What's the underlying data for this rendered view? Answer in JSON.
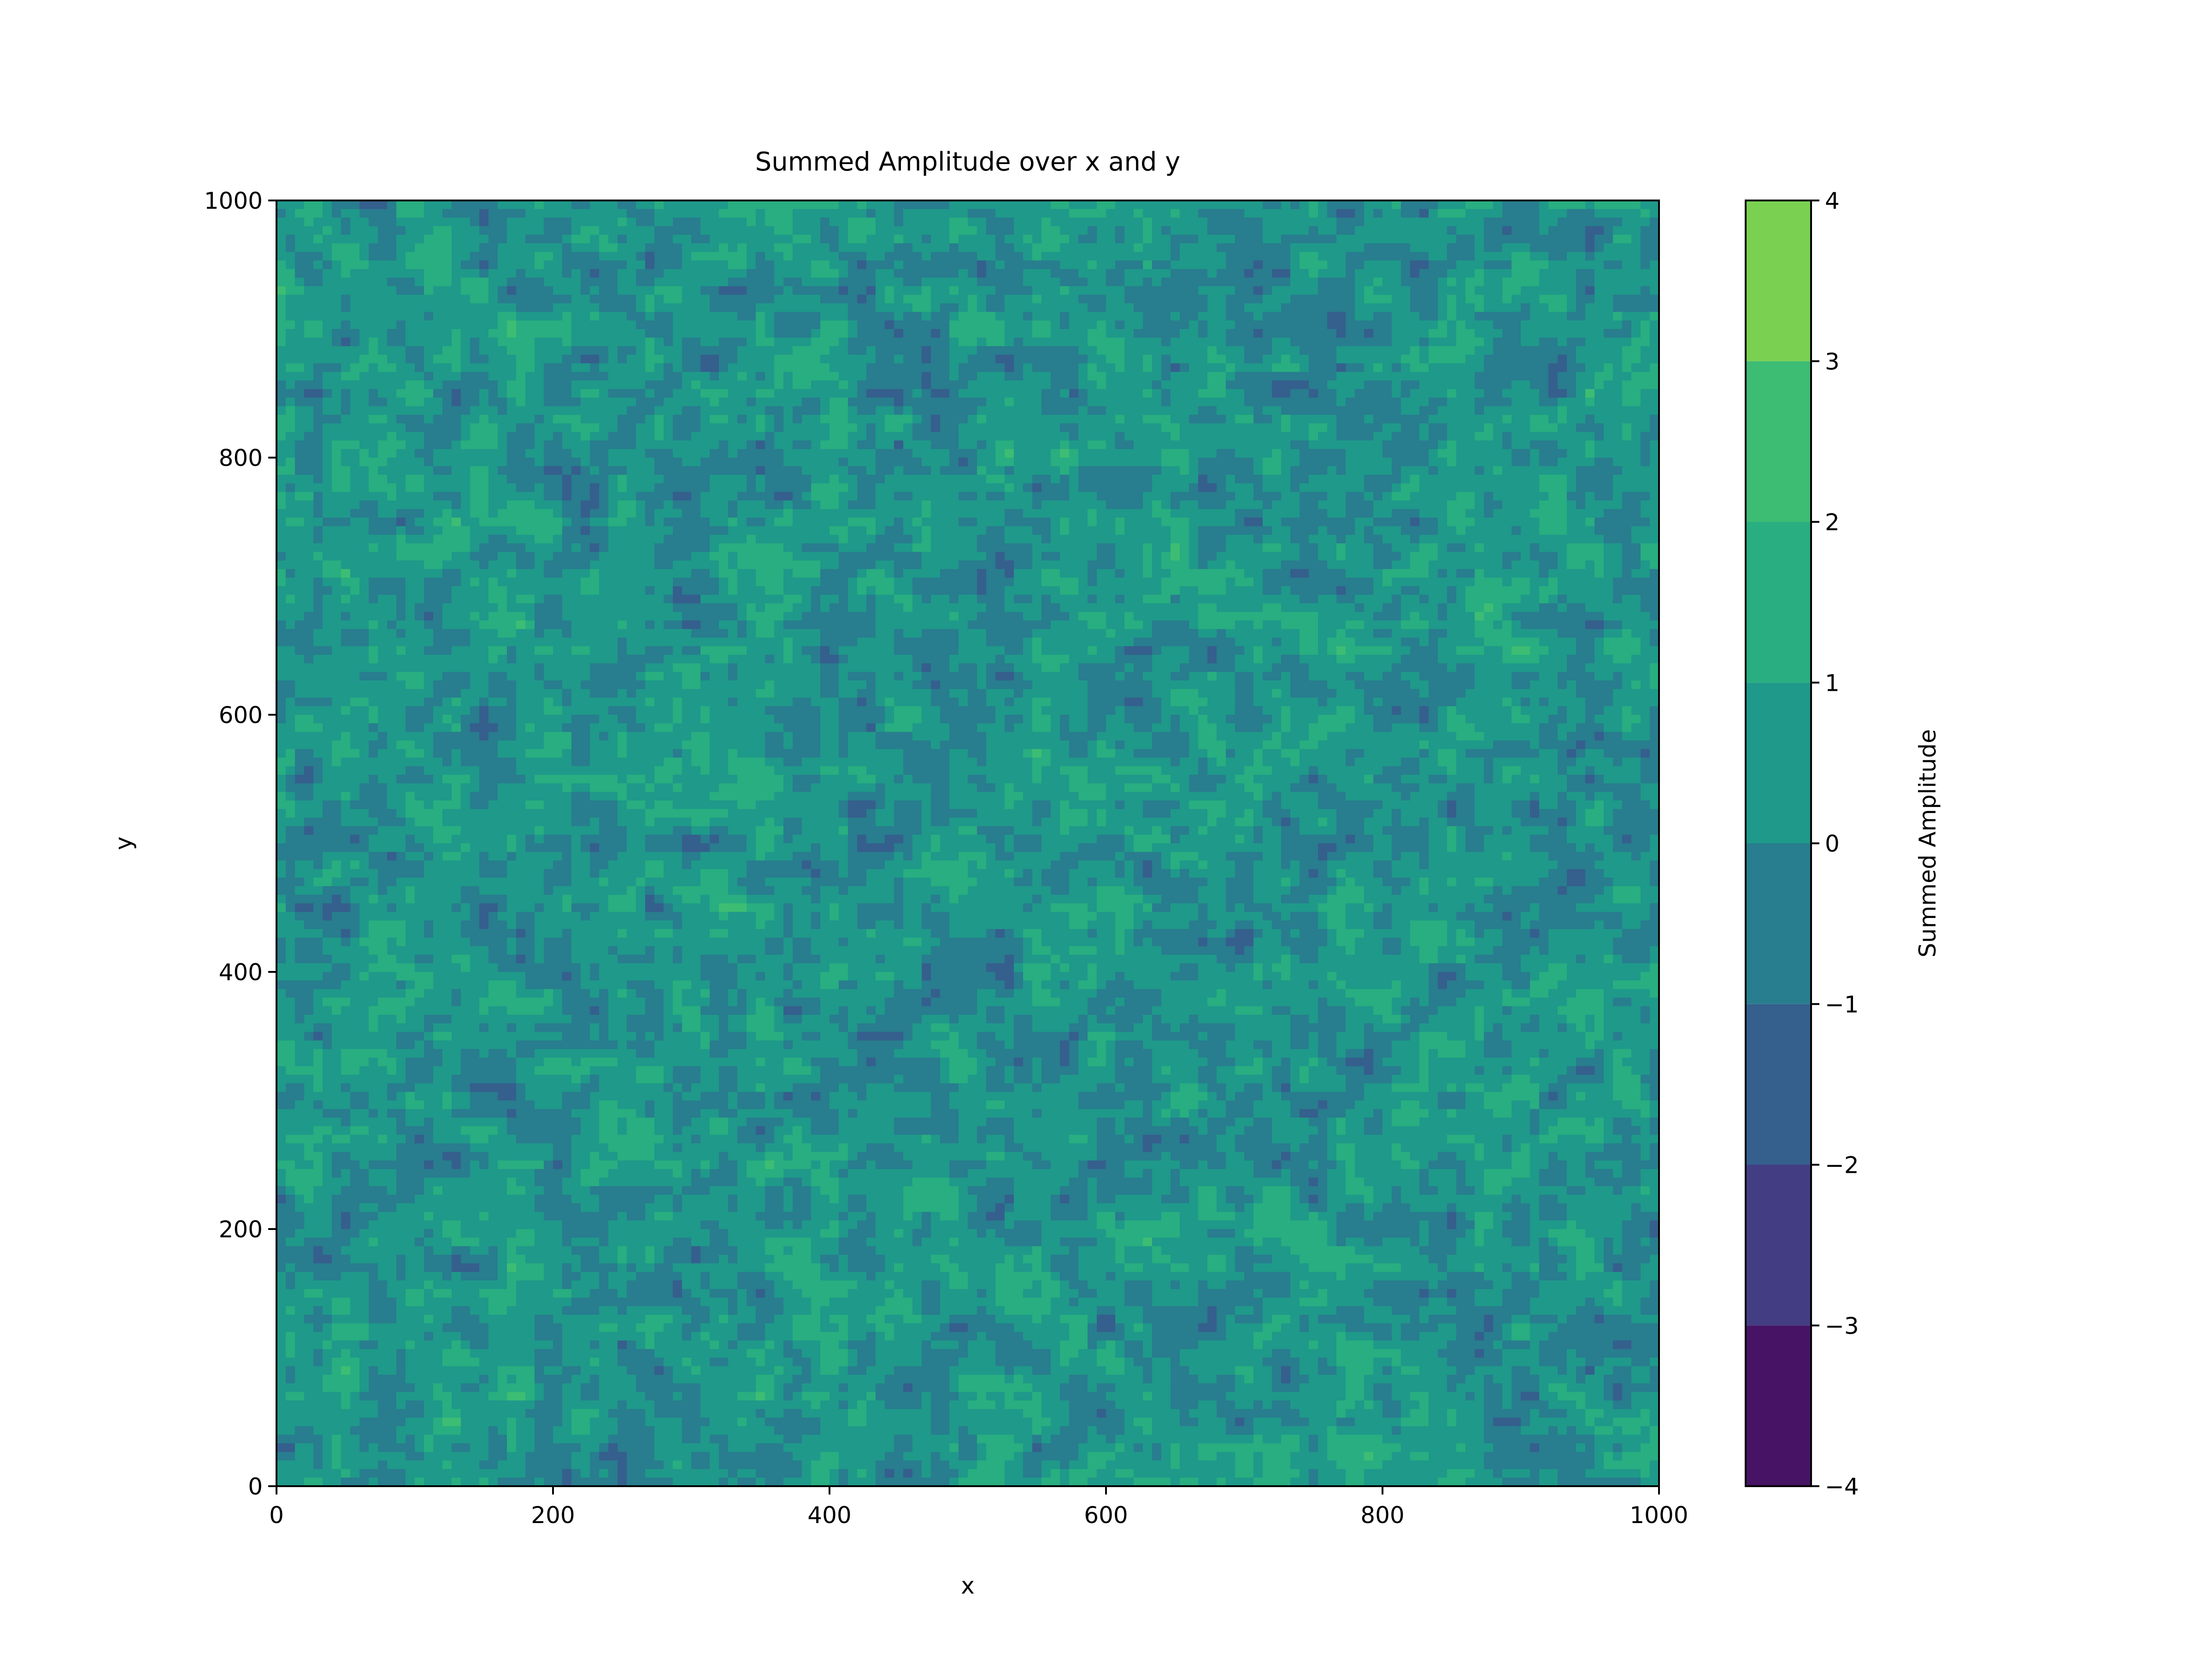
{
  "chart_data": {
    "type": "heatmap",
    "subtype": "filled-contour",
    "title": "Summed Amplitude over x and y",
    "xlabel": "x",
    "ylabel": "y",
    "xlim": [
      0,
      1000
    ],
    "ylim": [
      0,
      1000
    ],
    "xticks": [
      0,
      200,
      400,
      600,
      800,
      1000
    ],
    "yticks": [
      0,
      200,
      400,
      600,
      800,
      1000
    ],
    "colorbar": {
      "label": "Summed Amplitude",
      "levels": [
        -4,
        -3,
        -2,
        -1,
        0,
        1,
        2,
        3,
        4
      ],
      "tick_labels": [
        "−4",
        "−3",
        "−2",
        "−1",
        "0",
        "1",
        "2",
        "3",
        "4"
      ],
      "colors": [
        "#471365",
        "#433d84",
        "#355f8d",
        "#287d8e",
        "#1f998a",
        "#28ae80",
        "#3dbc74",
        "#7ad151",
        "#d2e21b"
      ]
    },
    "grid": false,
    "value_range": [
      -4,
      4
    ],
    "field_character": "random spatial noise, mostly between -2 and 2"
  }
}
